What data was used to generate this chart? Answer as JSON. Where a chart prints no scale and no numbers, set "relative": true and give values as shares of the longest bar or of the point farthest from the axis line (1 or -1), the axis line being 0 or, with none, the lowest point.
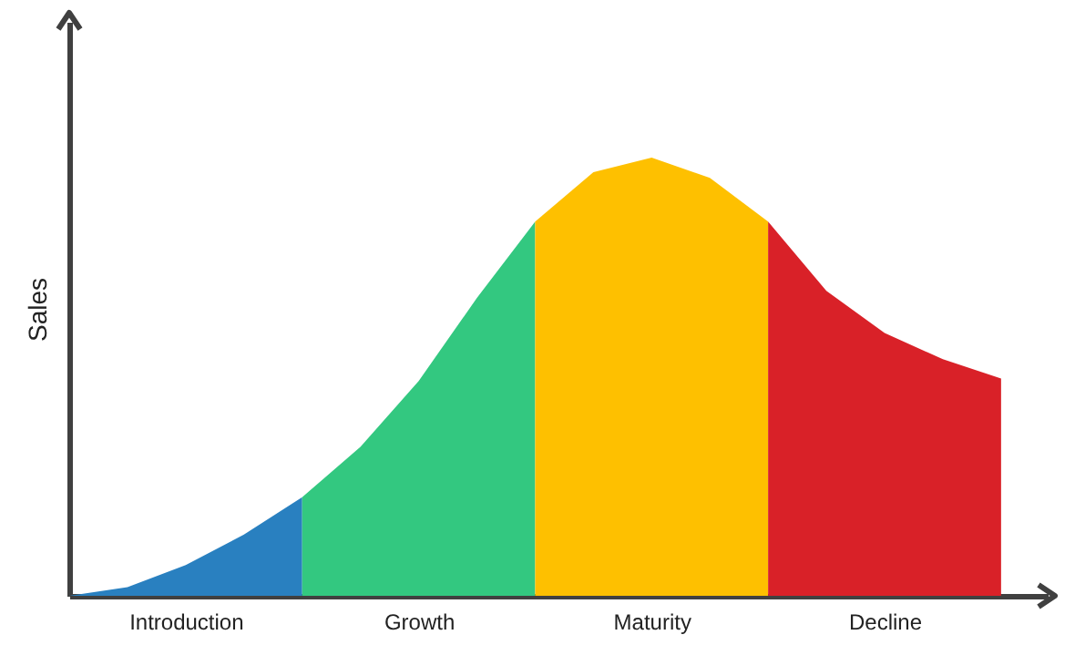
{
  "chart_data": {
    "type": "area",
    "relative": true,
    "ylabel": "Sales",
    "categories": [
      null,
      null,
      "Introduction",
      null,
      null,
      null,
      "Growth",
      null,
      null,
      null,
      "Maturity",
      null,
      null,
      null,
      "Decline",
      null,
      null
    ],
    "series": [
      {
        "color": "#2980c0",
        "values": [
          0,
          0.02,
          0.07,
          0.14,
          0.225,
          null,
          null,
          null,
          null,
          null,
          null,
          null,
          null,
          null,
          null,
          null,
          null
        ]
      },
      {
        "color": "#33c880",
        "values": [
          null,
          null,
          null,
          null,
          0.225,
          0.34,
          0.49,
          0.68,
          0.854,
          null,
          null,
          null,
          null,
          null,
          null,
          null,
          null
        ]
      },
      {
        "color": "#fec000",
        "values": [
          null,
          null,
          null,
          null,
          null,
          null,
          null,
          null,
          0.854,
          0.967,
          1,
          0.954,
          0.854,
          null,
          null,
          null,
          null
        ]
      },
      {
        "color": "#d92128",
        "values": [
          null,
          null,
          null,
          null,
          null,
          null,
          null,
          null,
          null,
          null,
          null,
          null,
          0.854,
          0.696,
          0.6,
          0.54,
          0.496
        ]
      }
    ]
  }
}
